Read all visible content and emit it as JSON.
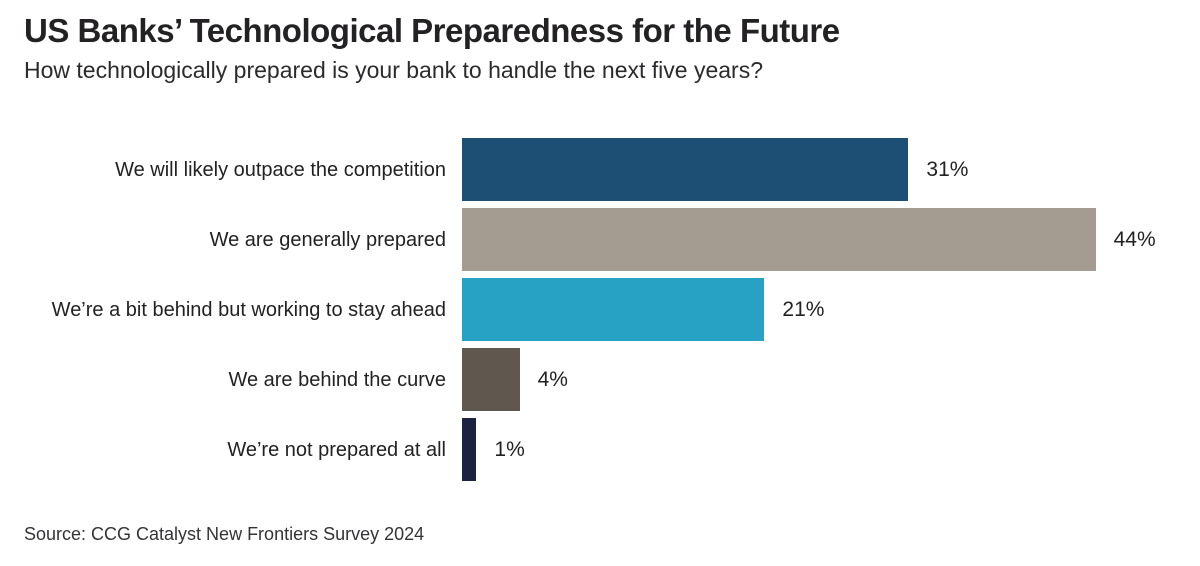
{
  "header": {
    "title": "US Banks’ Technological Preparedness for the Future",
    "subtitle": "How technologically prepared is your bank to handle the next five years?"
  },
  "chart_data": {
    "type": "bar",
    "orientation": "horizontal",
    "title": "US Banks’ Technological Preparedness for the Future",
    "subtitle": "How technologically prepared is your bank to handle the next five years?",
    "categories": [
      "We will likely outpace the competition",
      "We are generally prepared",
      "We’re a bit behind but working to stay ahead",
      "We are behind the curve",
      "We’re not prepared at all"
    ],
    "values": [
      31,
      44,
      21,
      4,
      1
    ],
    "value_labels": [
      "31%",
      "44%",
      "21%",
      "4%",
      "1%"
    ],
    "bar_colors": [
      "#1D4E73",
      "#A49B91",
      "#27A2C5",
      "#60584F",
      "#1C2340"
    ],
    "xlabel": "",
    "ylabel": "",
    "xlim": [
      0,
      46
    ],
    "grid": false,
    "legend": false,
    "data_labels": "outside-end"
  },
  "footer": {
    "source": "Source: CCG Catalyst New Frontiers Survey 2024"
  }
}
